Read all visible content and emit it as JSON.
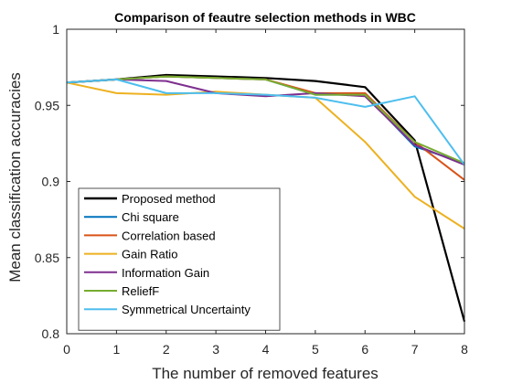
{
  "chart_data": {
    "type": "line",
    "title": "Comparison of feautre selection methods in WBC",
    "xlabel": "The number of removed features",
    "ylabel": "Mean classification accuracies",
    "xlim": [
      0,
      8
    ],
    "ylim": [
      0.8,
      1
    ],
    "xticks": [
      "0",
      "1",
      "2",
      "3",
      "4",
      "5",
      "6",
      "7",
      "8"
    ],
    "yticks": [
      "0.8",
      "0.85",
      "0.9",
      "0.95",
      "1"
    ],
    "grid": false,
    "legend_position": "bottom-left",
    "x": [
      0,
      1,
      2,
      3,
      4,
      5,
      6,
      7,
      8
    ],
    "series": [
      {
        "name": "Proposed method",
        "color": "#000000",
        "values": [
          0.965,
          0.967,
          0.97,
          0.969,
          0.968,
          0.966,
          0.962,
          0.927,
          0.808
        ]
      },
      {
        "name": "Chi square",
        "color": "#0072BD",
        "values": [
          0.965,
          0.967,
          0.969,
          0.968,
          0.967,
          0.957,
          0.957,
          0.923,
          0.912
        ]
      },
      {
        "name": "Correlation based",
        "color": "#D95319",
        "values": [
          0.965,
          0.967,
          0.969,
          0.968,
          0.967,
          0.958,
          0.958,
          0.926,
          0.901
        ]
      },
      {
        "name": "Gain Ratio",
        "color": "#EDB120",
        "values": [
          0.965,
          0.958,
          0.957,
          0.959,
          0.957,
          0.955,
          0.926,
          0.89,
          0.869
        ]
      },
      {
        "name": "Information Gain",
        "color": "#7E2F8E",
        "values": [
          0.965,
          0.967,
          0.966,
          0.958,
          0.956,
          0.958,
          0.956,
          0.924,
          0.911
        ]
      },
      {
        "name": "ReliefF",
        "color": "#77AC30",
        "values": [
          0.965,
          0.967,
          0.969,
          0.968,
          0.967,
          0.957,
          0.957,
          0.926,
          0.912
        ]
      },
      {
        "name": "Symmetrical Uncertainty",
        "color": "#4DBEEE",
        "values": [
          0.965,
          0.967,
          0.958,
          0.958,
          0.957,
          0.955,
          0.949,
          0.956,
          0.911
        ]
      }
    ]
  }
}
